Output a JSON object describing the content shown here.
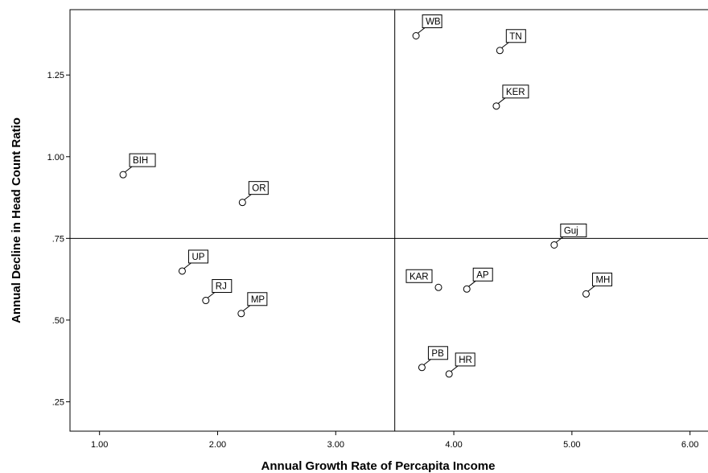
{
  "chart_data": {
    "type": "scatter",
    "xlabel": "Annual Growth Rate of Percapita Income",
    "ylabel": "Annual Decline in Head Count Ratio",
    "xlim": [
      0.75,
      6.2
    ],
    "ylim": [
      0.16,
      1.45
    ],
    "x_ticks": [
      1.0,
      2.0,
      3.0,
      4.0,
      5.0,
      6.0
    ],
    "x_tick_labels": [
      "1.00",
      "2.00",
      "3.00",
      "4.00",
      "5.00",
      "6.00"
    ],
    "y_ticks": [
      0.25,
      0.5,
      0.75,
      1.0,
      1.25
    ],
    "y_tick_labels": [
      ".25",
      ".50",
      ".75",
      "1.00",
      "1.25"
    ],
    "reference_lines": {
      "x": 3.5,
      "y": 0.75
    },
    "grid": false,
    "legend": "none",
    "points": [
      {
        "label": "WB",
        "x": 3.68,
        "y": 1.37
      },
      {
        "label": "TN",
        "x": 4.39,
        "y": 1.325
      },
      {
        "label": "KER",
        "x": 4.36,
        "y": 1.155
      },
      {
        "label": "BIH",
        "x": 1.2,
        "y": 0.945
      },
      {
        "label": "OR",
        "x": 2.21,
        "y": 0.86
      },
      {
        "label": "Guj",
        "x": 4.85,
        "y": 0.73
      },
      {
        "label": "UP",
        "x": 1.7,
        "y": 0.65
      },
      {
        "label": "KAR",
        "x": 3.87,
        "y": 0.6
      },
      {
        "label": "AP",
        "x": 4.11,
        "y": 0.595
      },
      {
        "label": "MH",
        "x": 5.12,
        "y": 0.58
      },
      {
        "label": "RJ",
        "x": 1.9,
        "y": 0.56
      },
      {
        "label": "MP",
        "x": 2.2,
        "y": 0.52
      },
      {
        "label": "PB",
        "x": 3.73,
        "y": 0.355
      },
      {
        "label": "HR",
        "x": 3.96,
        "y": 0.335
      }
    ]
  }
}
